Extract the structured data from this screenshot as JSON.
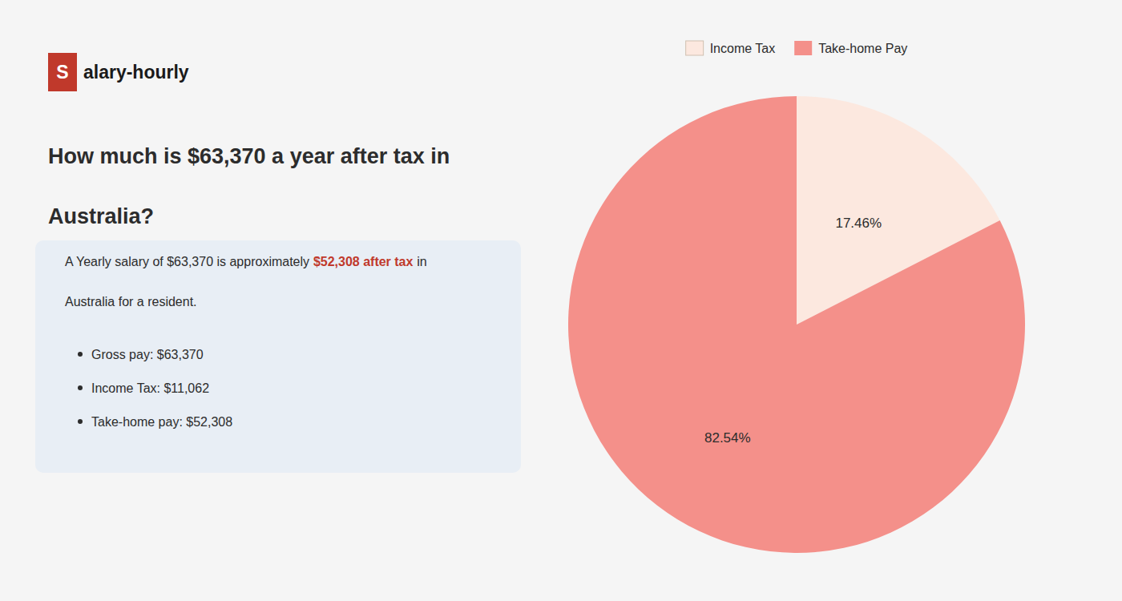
{
  "chart_data": {
    "type": "pie",
    "title": [
      "How much is $63,370 a year after tax in",
      "Australia?"
    ],
    "annotations": [
      "S",
      "alary-hourly",
      "A Yearly salary of $63,370 is approximately",
      "$52,308 after tax",
      "in",
      "Australia for a resident.",
      "Gross pay: $63,370",
      "Income Tax: $11,062",
      "Take-home pay: $52,308"
    ],
    "categories": [
      "Income Tax",
      "Take-home Pay"
    ],
    "values": [
      17.46,
      82.54
    ],
    "value_labels": [
      "17.46%",
      "82.54%"
    ],
    "colors": [
      "#fce8df",
      "#f4908a"
    ],
    "data_labels": true,
    "legend": "top"
  }
}
